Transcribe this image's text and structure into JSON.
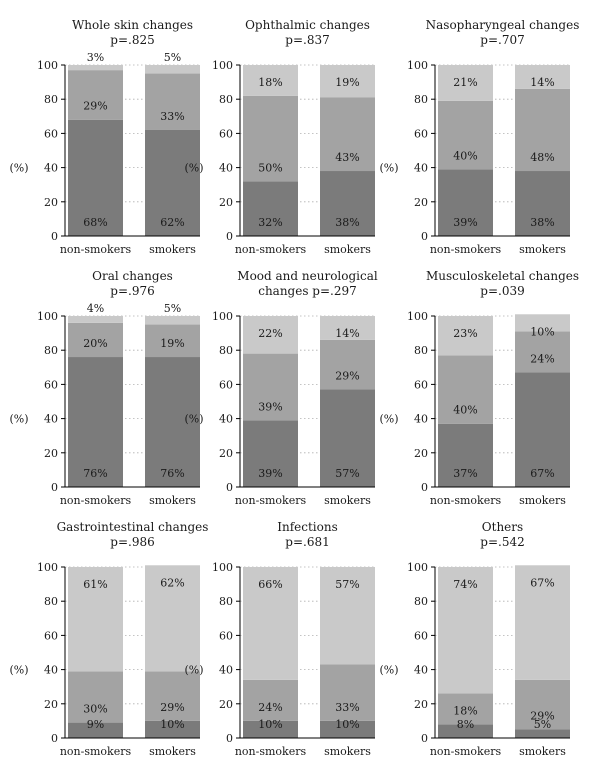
{
  "chart_data": [
    {
      "type": "bar",
      "stacked": true,
      "title_lines": [
        "Whole skin changes",
        "p=.825"
      ],
      "categories": [
        "non-smokers",
        "smokers"
      ],
      "ylabel": "(%)",
      "ylim": [
        0,
        100
      ],
      "yticks": [
        0,
        20,
        40,
        60,
        80,
        100
      ],
      "grid": true,
      "series": [
        {
          "values": [
            68,
            62
          ],
          "labels": [
            "68%",
            "62%"
          ]
        },
        {
          "values": [
            29,
            33
          ],
          "labels": [
            "29%",
            "33%"
          ]
        },
        {
          "values": [
            3,
            5
          ],
          "labels": [
            "3%",
            "5%"
          ]
        }
      ]
    },
    {
      "type": "bar",
      "stacked": true,
      "title_lines": [
        "Ophthalmic changes",
        "p=.837"
      ],
      "categories": [
        "non-smokers",
        "smokers"
      ],
      "ylabel": "(%)",
      "ylim": [
        0,
        100
      ],
      "yticks": [
        0,
        20,
        40,
        60,
        80,
        100
      ],
      "grid": true,
      "series": [
        {
          "values": [
            32,
            38
          ],
          "labels": [
            "32%",
            "38%"
          ]
        },
        {
          "values": [
            50,
            43
          ],
          "labels": [
            "50%",
            "43%"
          ]
        },
        {
          "values": [
            18,
            19
          ],
          "labels": [
            "18%",
            "19%"
          ]
        }
      ]
    },
    {
      "type": "bar",
      "stacked": true,
      "title_lines": [
        "Nasopharyngeal changes",
        "p=.707"
      ],
      "categories": [
        "non-smokers",
        "smokers"
      ],
      "ylabel": "(%)",
      "ylim": [
        0,
        100
      ],
      "yticks": [
        0,
        20,
        40,
        60,
        80,
        100
      ],
      "grid": true,
      "series": [
        {
          "values": [
            39,
            38
          ],
          "labels": [
            "39%",
            "38%"
          ]
        },
        {
          "values": [
            40,
            48
          ],
          "labels": [
            "40%",
            "48%"
          ]
        },
        {
          "values": [
            21,
            14
          ],
          "labels": [
            "21%",
            "14%"
          ]
        }
      ]
    },
    {
      "type": "bar",
      "stacked": true,
      "title_lines": [
        "Oral changes",
        "p=.976"
      ],
      "categories": [
        "non-smokers",
        "smokers"
      ],
      "ylabel": "(%)",
      "ylim": [
        0,
        100
      ],
      "yticks": [
        0,
        20,
        40,
        60,
        80,
        100
      ],
      "grid": true,
      "series": [
        {
          "values": [
            76,
            76
          ],
          "labels": [
            "76%",
            "76%"
          ]
        },
        {
          "values": [
            20,
            19
          ],
          "labels": [
            "20%",
            "19%"
          ]
        },
        {
          "values": [
            4,
            5
          ],
          "labels": [
            "4%",
            "5%"
          ]
        }
      ]
    },
    {
      "type": "bar",
      "stacked": true,
      "title_lines": [
        "Mood and neurological",
        "changes p=.297"
      ],
      "categories": [
        "non-smokers",
        "smokers"
      ],
      "ylabel": "(%)",
      "ylim": [
        0,
        100
      ],
      "yticks": [
        0,
        20,
        40,
        60,
        80,
        100
      ],
      "grid": true,
      "series": [
        {
          "values": [
            39,
            57
          ],
          "labels": [
            "39%",
            "57%"
          ]
        },
        {
          "values": [
            39,
            29
          ],
          "labels": [
            "39%",
            "29%"
          ]
        },
        {
          "values": [
            22,
            14
          ],
          "labels": [
            "22%",
            "14%"
          ]
        }
      ]
    },
    {
      "type": "bar",
      "stacked": true,
      "title_lines": [
        "Musculoskeletal changes",
        "p=.039"
      ],
      "categories": [
        "non-smokers",
        "smokers"
      ],
      "ylabel": "(%)",
      "ylim": [
        0,
        100
      ],
      "yticks": [
        0,
        20,
        40,
        60,
        80,
        100
      ],
      "grid": true,
      "series": [
        {
          "values": [
            37,
            67
          ],
          "labels": [
            "37%",
            "67%"
          ]
        },
        {
          "values": [
            40,
            24
          ],
          "labels": [
            "40%",
            "24%"
          ]
        },
        {
          "values": [
            23,
            10
          ],
          "labels": [
            "23%",
            "10%"
          ]
        }
      ]
    },
    {
      "type": "bar",
      "stacked": true,
      "title_lines": [
        "Gastrointestinal changes",
        "p=.986"
      ],
      "categories": [
        "non-smokers",
        "smokers"
      ],
      "ylabel": "(%)",
      "ylim": [
        0,
        100
      ],
      "yticks": [
        0,
        20,
        40,
        60,
        80,
        100
      ],
      "grid": true,
      "series": [
        {
          "values": [
            9,
            10
          ],
          "labels": [
            "9%",
            "10%"
          ]
        },
        {
          "values": [
            30,
            29
          ],
          "labels": [
            "30%",
            "29%"
          ]
        },
        {
          "values": [
            61,
            62
          ],
          "labels": [
            "61%",
            "62%"
          ]
        }
      ]
    },
    {
      "type": "bar",
      "stacked": true,
      "title_lines": [
        "Infections",
        "p=.681"
      ],
      "categories": [
        "non-smokers",
        "smokers"
      ],
      "ylabel": "(%)",
      "ylim": [
        0,
        100
      ],
      "yticks": [
        0,
        20,
        40,
        60,
        80,
        100
      ],
      "grid": true,
      "series": [
        {
          "values": [
            10,
            10
          ],
          "labels": [
            "10%",
            "10%"
          ]
        },
        {
          "values": [
            24,
            33
          ],
          "labels": [
            "24%",
            "33%"
          ]
        },
        {
          "values": [
            66,
            57
          ],
          "labels": [
            "66%",
            "57%"
          ]
        }
      ]
    },
    {
      "type": "bar",
      "stacked": true,
      "title_lines": [
        "Others",
        "p=.542"
      ],
      "categories": [
        "non-smokers",
        "smokers"
      ],
      "ylabel": "(%)",
      "ylim": [
        0,
        100
      ],
      "yticks": [
        0,
        20,
        40,
        60,
        80,
        100
      ],
      "grid": true,
      "series": [
        {
          "values": [
            8,
            5
          ],
          "labels": [
            "8%",
            "5%"
          ]
        },
        {
          "values": [
            18,
            29
          ],
          "labels": [
            "18%",
            "29%"
          ]
        },
        {
          "values": [
            74,
            67
          ],
          "labels": [
            "74%",
            "67%"
          ]
        }
      ]
    }
  ],
  "colors": {
    "segment_bottom": "#7b7b7b",
    "segment_middle": "#a3a3a3",
    "segment_top": "#c9c9c9",
    "text": "#1a1a1a",
    "axis": "#000000",
    "grid": "#b0b0b0"
  }
}
